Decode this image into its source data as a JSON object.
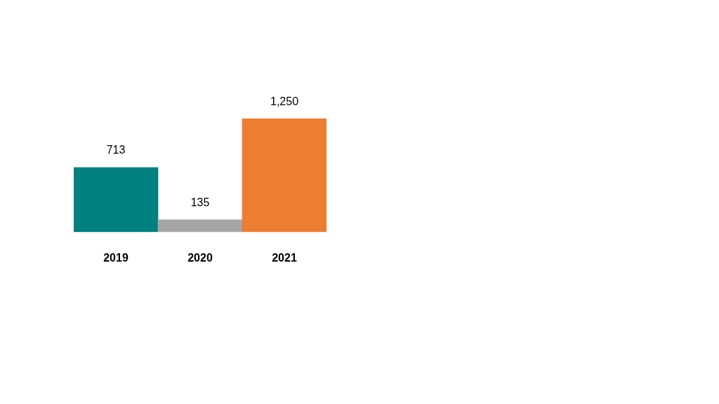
{
  "chart_data": {
    "type": "bar",
    "categories": [
      "2019",
      "2020",
      "2021"
    ],
    "values": [
      713,
      135,
      1250
    ],
    "colors": [
      "#008080",
      "#a6a6a6",
      "#ed7d31"
    ],
    "data_labels": true,
    "value_labels": [
      "713",
      "135",
      "1,250"
    ],
    "grid": false,
    "legend": false,
    "tick_labels": "x"
  }
}
